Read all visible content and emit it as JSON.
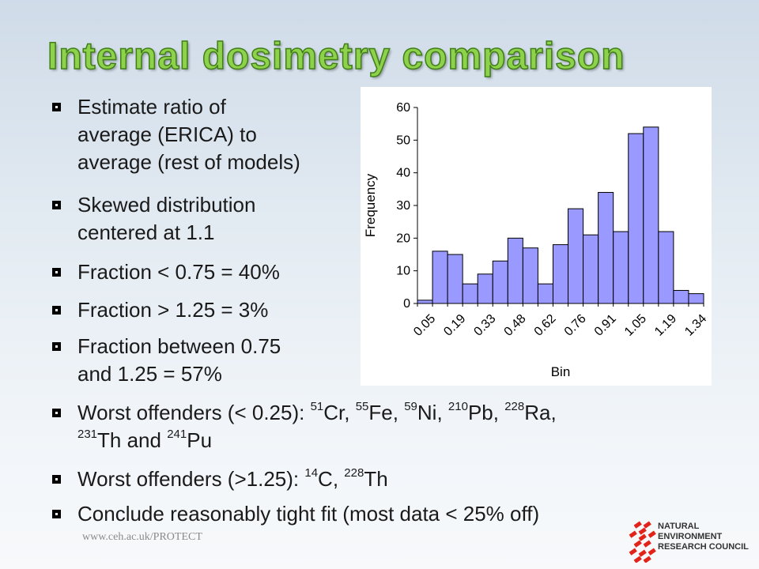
{
  "slide": {
    "title": "Internal dosimetry comparison"
  },
  "bullets": {
    "b1": [
      "Estimate ratio of",
      "average (ERICA) to",
      "average (rest of models)"
    ],
    "b2": [
      "Skewed distribution",
      "centered at 1.1"
    ],
    "b3": "Fraction < 0.75 = 40%",
    "b4": "Fraction > 1.25 = 3%",
    "b5": [
      "Fraction between 0.75",
      "and 1.25 = 57%"
    ],
    "b6": {
      "prefix": "Worst offenders (< 0.25): ",
      "items": [
        {
          "mass": "51",
          "el": "Cr",
          "sep": ", "
        },
        {
          "mass": "55",
          "el": "Fe",
          "sep": ", "
        },
        {
          "mass": "59",
          "el": "Ni",
          "sep": ", "
        },
        {
          "mass": "210",
          "el": "Pb",
          "sep": ", "
        },
        {
          "mass": "228",
          "el": "Ra",
          "sep": ","
        },
        {
          "mass": "231",
          "el": "Th",
          "sep": " and "
        },
        {
          "mass": "241",
          "el": "Pu",
          "sep": ""
        }
      ]
    },
    "b7": {
      "prefix": "Worst offenders (>1.25): ",
      "items": [
        {
          "mass": "14",
          "el": "C",
          "sep": ", "
        },
        {
          "mass": "228",
          "el": "Th",
          "sep": ""
        }
      ]
    },
    "b8": "Conclude reasonably tight fit (most data < 25% off)"
  },
  "footer": {
    "url": "www.ceh.ac.uk/PROTECT"
  },
  "logo": {
    "lines": [
      "NATURAL",
      "ENVIRONMENT",
      "RESEARCH COUNCIL"
    ],
    "color": "#e2231a"
  },
  "chart_data": {
    "type": "bar",
    "xlabel": "Bin",
    "ylabel": "Frequency",
    "ylim": [
      0,
      60
    ],
    "yticks": [
      0,
      10,
      20,
      30,
      40,
      50,
      60
    ],
    "grid": false,
    "bar_color": "#9999ff",
    "values": [
      1,
      16,
      15,
      6,
      9,
      13,
      20,
      17,
      6,
      18,
      29,
      21,
      34,
      22,
      52,
      54,
      22,
      4,
      3
    ],
    "tick_labels": [
      "0.05",
      "0.19",
      "0.33",
      "0.48",
      "0.62",
      "0.76",
      "0.91",
      "1.05",
      "1.19",
      "1.34"
    ],
    "tick_every": 2
  }
}
